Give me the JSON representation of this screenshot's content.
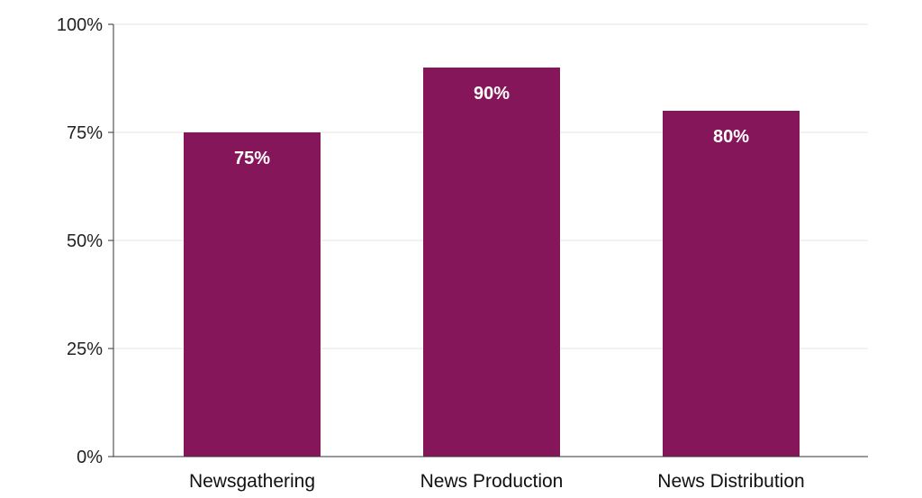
{
  "chart_data": {
    "type": "bar",
    "title": "",
    "xlabel": "",
    "ylabel": "",
    "categories": [
      "Newsgathering",
      "News Production",
      "News Distribution"
    ],
    "values": [
      75,
      90,
      80
    ],
    "value_labels": [
      "75%",
      "90%",
      "80%"
    ],
    "ylim": [
      0,
      100
    ],
    "yticks": [
      0,
      25,
      50,
      75,
      100
    ],
    "ytick_labels": [
      "0%",
      "25%",
      "50%",
      "75%",
      "100%"
    ],
    "grid": true,
    "legend": "none",
    "colors": {
      "bar": "#86165A",
      "grid": "#e6e6e6",
      "axis": "#333333"
    }
  }
}
